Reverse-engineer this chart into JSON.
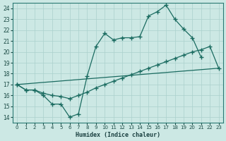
{
  "xlabel": "Humidex (Indice chaleur)",
  "xlim": [
    -0.5,
    23.5
  ],
  "ylim": [
    13.5,
    24.5
  ],
  "xticks": [
    0,
    1,
    2,
    3,
    4,
    5,
    6,
    7,
    8,
    9,
    10,
    11,
    12,
    13,
    14,
    15,
    16,
    17,
    18,
    19,
    20,
    21,
    22,
    23
  ],
  "yticks": [
    14,
    15,
    16,
    17,
    18,
    19,
    20,
    21,
    22,
    23,
    24
  ],
  "bg_color": "#cce8e4",
  "line_color": "#1a6b60",
  "grid_color": "#aad0cc",
  "line1_x": [
    0,
    1,
    2,
    3,
    4,
    5,
    6,
    7,
    8,
    9,
    10,
    11,
    12,
    13,
    14,
    15,
    16,
    17,
    18,
    19,
    20,
    21
  ],
  "line1_y": [
    17.0,
    16.5,
    16.5,
    16.0,
    15.2,
    15.2,
    14.0,
    14.3,
    17.8,
    20.5,
    21.7,
    21.1,
    21.3,
    21.3,
    21.4,
    23.3,
    23.7,
    24.3,
    23.0,
    22.1,
    21.3,
    19.5
  ],
  "line2_x": [
    0,
    1,
    2,
    3,
    4,
    5,
    6,
    7,
    8,
    9,
    10,
    11,
    12,
    13,
    14,
    15,
    16,
    17,
    18,
    19,
    20,
    21,
    22,
    23
  ],
  "line2_y": [
    17.0,
    16.5,
    16.5,
    16.2,
    16.0,
    15.9,
    15.7,
    16.0,
    16.3,
    16.7,
    17.0,
    17.3,
    17.6,
    17.9,
    18.2,
    18.5,
    18.8,
    19.1,
    19.4,
    19.7,
    20.0,
    20.2,
    20.5,
    18.5
  ],
  "line3_x": [
    0,
    23
  ],
  "line3_y": [
    17.0,
    18.5
  ]
}
